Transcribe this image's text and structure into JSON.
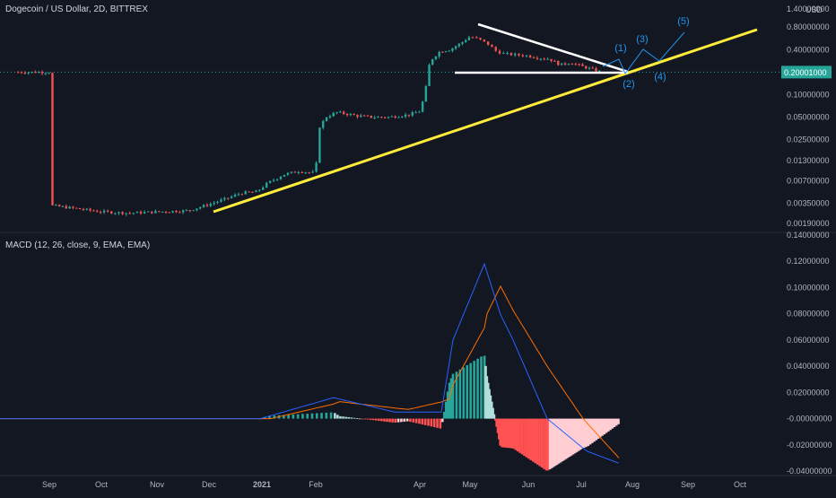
{
  "header": {
    "title": "Dogecoin / US Dollar, 2D, BITTREX",
    "currency": "USD"
  },
  "indicator": {
    "label": "MACD (12, 26, close, 9, EMA, EMA)"
  },
  "colors": {
    "background": "#131722",
    "up": "#26a69a",
    "down": "#ef5350",
    "trendline": "#ffeb3b",
    "triangle": "#ffffff",
    "wave": "#2196f3",
    "macd_line": "#2962ff",
    "signal_line": "#ff6d00",
    "hist_up_strong": "#26a69a",
    "hist_up_weak": "#b2dfdb",
    "hist_down_strong": "#ff5252",
    "hist_down_weak": "#ffcdd2",
    "price_badge": "#26a69a"
  },
  "chart_data": [
    {
      "type": "candlestick",
      "title": "Dogecoin / US Dollar, 2D, BITTREX",
      "y_scale": "log",
      "ylim": [
        0.0016,
        1.4
      ],
      "y_ticks": [
        "1.40000000",
        "0.80000000",
        "0.40000000",
        "0.20001000",
        "0.10000000",
        "0.05000000",
        "0.02500000",
        "0.01300000",
        "0.00700000",
        "0.00350000",
        "0.00190000"
      ],
      "last_price": "0.20001000",
      "x_labels": [
        "Sep",
        "Oct",
        "Nov",
        "Dec",
        "2021",
        "Feb",
        "Apr",
        "May",
        "Jun",
        "Jul",
        "Aug",
        "Sep",
        "Oct"
      ],
      "approx_closes": [
        {
          "period": "Sep 2020",
          "close": 0.0033
        },
        {
          "period": "Oct 2020",
          "close": 0.0026
        },
        {
          "period": "Nov 2020",
          "close": 0.0027
        },
        {
          "period": "Dec 2020",
          "close": 0.0046
        },
        {
          "period": "Jan 2021",
          "close": 0.0085
        },
        {
          "period": "Feb 2021",
          "close": 0.052
        },
        {
          "period": "Mar 2021",
          "close": 0.052
        },
        {
          "period": "Apr 2021",
          "close": 0.32
        },
        {
          "period": "May 2021",
          "close": 0.6
        },
        {
          "period": "Jun 2021",
          "close": 0.28
        },
        {
          "period": "Jul 2021",
          "close": 0.2
        }
      ],
      "annotations": {
        "wave_labels": [
          "(1)",
          "(2)",
          "(3)",
          "(4)",
          "(5)"
        ],
        "support_trendline": "rising yellow line from Dec 2020 low through Feb 2021 low extending to Oct",
        "triangle": "descending white resistance from May 2021 high converging with horizontal white support"
      }
    },
    {
      "type": "line",
      "title": "MACD (12, 26, close, 9, EMA, EMA)",
      "ylim": [
        -0.04,
        0.14
      ],
      "y_ticks": [
        "0.14000000",
        "0.12000000",
        "0.10000000",
        "0.08000000",
        "0.06000000",
        "0.04000000",
        "0.02000000",
        "-0.00000000",
        "-0.02000000",
        "-0.04000000"
      ],
      "series": [
        {
          "name": "MACD",
          "approx_points": [
            [
              0,
              0
            ],
            [
              0.9,
              0.0
            ],
            [
              1.6,
              0.016
            ],
            [
              2.6,
              0.005
            ],
            [
              3.3,
              0.005
            ],
            [
              3.6,
              0.06
            ],
            [
              4.0,
              0.118
            ],
            [
              4.9,
              0.06
            ],
            [
              5.6,
              0.0
            ],
            [
              6.6,
              -0.025
            ],
            [
              7.3,
              -0.034
            ]
          ]
        },
        {
          "name": "Signal",
          "approx_points": [
            [
              0,
              0
            ],
            [
              1.0,
              0.0
            ],
            [
              1.7,
              0.013
            ],
            [
              2.8,
              0.007
            ],
            [
              3.5,
              0.015
            ],
            [
              4.1,
              0.08
            ],
            [
              4.6,
              0.101
            ],
            [
              5.6,
              0.04
            ],
            [
              6.5,
              0.0
            ],
            [
              7.3,
              -0.03
            ]
          ]
        }
      ]
    }
  ]
}
